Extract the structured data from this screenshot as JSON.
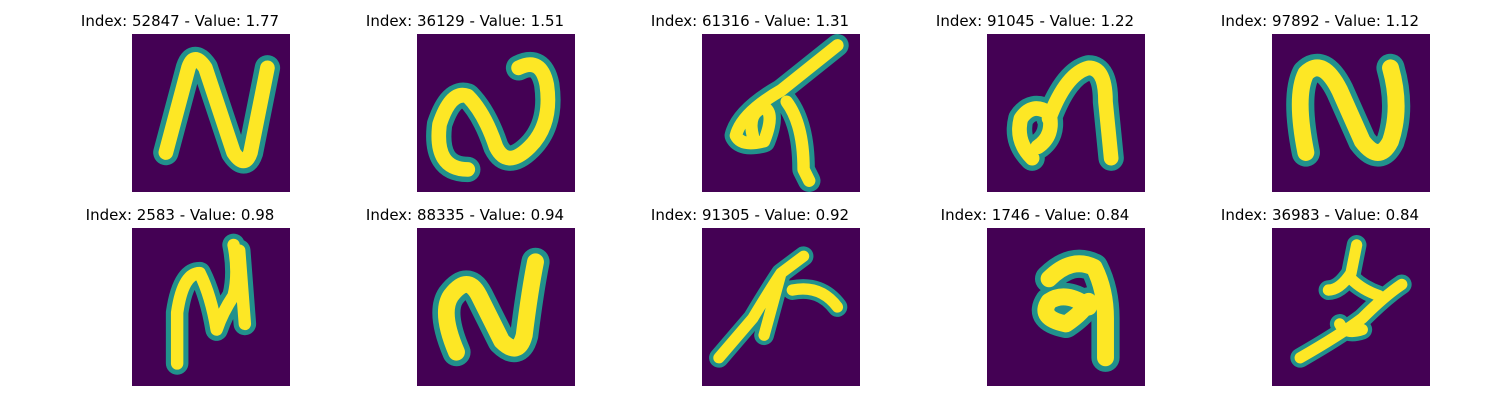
{
  "colors": {
    "background_dark": "#440154",
    "stroke_mid": "#21918c",
    "stroke_light": "#5ec962",
    "stroke_bright": "#fde725"
  },
  "panels": [
    {
      "title": "Index: 52847 - Value: 1.77",
      "depicts": "handwritten stroke shaped like N"
    },
    {
      "title": "Index: 36129 - Value: 1.51",
      "depicts": "handwritten stroke shaped like a tilted N / wave"
    },
    {
      "title": "Index: 61316 - Value: 1.31",
      "depicts": "handwritten stroke with loop on left and diagonal on right"
    },
    {
      "title": "Index: 91045 - Value: 1.22",
      "depicts": "handwritten stroke shaped like m with loop"
    },
    {
      "title": "Index: 97892 - Value: 1.12",
      "depicts": "handwritten stroke shaped like N"
    },
    {
      "title": "Index: 2583 - Value: 0.98",
      "depicts": "handwritten stroke shaped like narrow N"
    },
    {
      "title": "Index: 88335 - Value: 0.94",
      "depicts": "handwritten stroke shaped like tilted N"
    },
    {
      "title": "Index: 91305 - Value: 0.92",
      "depicts": "handwritten stroke shaped like branching k"
    },
    {
      "title": "Index: 1746 - Value: 0.84",
      "depicts": "handwritten stroke shaped like looped a"
    },
    {
      "title": "Index: 36983 - Value: 0.84",
      "depicts": "handwritten stroke shaped like branching glyph"
    }
  ]
}
